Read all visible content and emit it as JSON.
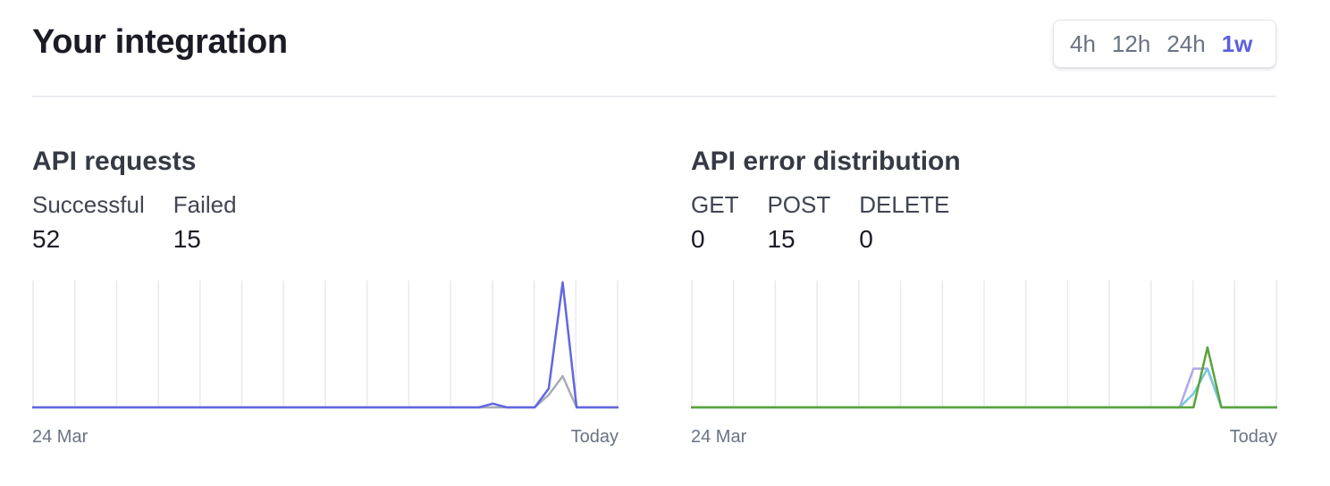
{
  "header": {
    "title": "Your integration",
    "ranges": [
      "4h",
      "12h",
      "24h",
      "1w"
    ],
    "active_range": "1w",
    "accent_color": "#5a5fe0"
  },
  "api_requests": {
    "title": "API requests",
    "metrics": [
      {
        "label": "Successful",
        "value": "52"
      },
      {
        "label": "Failed",
        "value": "15"
      }
    ],
    "x_start": "24 Mar",
    "x_end": "Today"
  },
  "api_errors": {
    "title": "API error distribution",
    "metrics": [
      {
        "label": "GET",
        "value": "0"
      },
      {
        "label": "POST",
        "value": "15"
      },
      {
        "label": "DELETE",
        "value": "0"
      }
    ],
    "x_start": "24 Mar",
    "x_end": "Today"
  },
  "chart_data": [
    {
      "type": "line",
      "x": [
        0,
        1,
        2,
        3,
        4,
        5,
        6,
        7,
        8,
        9,
        10,
        11,
        12,
        13,
        14,
        15,
        16,
        17,
        18,
        19,
        20,
        21,
        22,
        23,
        24,
        25,
        26,
        27,
        28,
        29,
        30,
        31,
        32,
        33,
        34,
        35,
        36,
        37,
        38,
        39,
        40,
        41,
        42
      ],
      "series": [
        {
          "color": "#6366e1",
          "values": [
            0,
            0,
            0,
            0,
            0,
            0,
            0,
            0,
            0,
            0,
            0,
            0,
            0,
            0,
            0,
            0,
            0,
            0,
            0,
            0,
            0,
            0,
            0,
            0,
            0,
            0,
            0,
            0,
            0,
            0,
            0,
            0,
            0,
            0.3,
            0,
            0,
            0,
            1.5,
            10,
            0,
            0,
            0,
            0
          ]
        },
        {
          "color": "#a8acb5",
          "values": [
            0,
            0,
            0,
            0,
            0,
            0,
            0,
            0,
            0,
            0,
            0,
            0,
            0,
            0,
            0,
            0,
            0,
            0,
            0,
            0,
            0,
            0,
            0,
            0,
            0,
            0,
            0,
            0,
            0,
            0,
            0,
            0,
            0,
            0,
            0,
            0,
            0,
            1,
            2.5,
            0,
            0,
            0,
            0
          ]
        }
      ],
      "ylim": [
        0,
        10
      ],
      "grid": true,
      "xlabel_start": "24 Mar",
      "xlabel_end": "Today"
    },
    {
      "type": "line",
      "x": [
        0,
        1,
        2,
        3,
        4,
        5,
        6,
        7,
        8,
        9,
        10,
        11,
        12,
        13,
        14,
        15,
        16,
        17,
        18,
        19,
        20,
        21,
        22,
        23,
        24,
        25,
        26,
        27,
        28,
        29,
        30,
        31,
        32,
        33,
        34,
        35,
        36,
        37,
        38,
        39,
        40,
        41,
        42
      ],
      "series": [
        {
          "color": "#5aa33a",
          "values": [
            0,
            0,
            0,
            0,
            0,
            0,
            0,
            0,
            0,
            0,
            0,
            0,
            0,
            0,
            0,
            0,
            0,
            0,
            0,
            0,
            0,
            0,
            0,
            0,
            0,
            0,
            0,
            0,
            0,
            0,
            0,
            0,
            0,
            0,
            0,
            0,
            0,
            4.8,
            0,
            0,
            0,
            0,
            0
          ]
        },
        {
          "color": "#79c6e0",
          "values": [
            0,
            0,
            0,
            0,
            0,
            0,
            0,
            0,
            0,
            0,
            0,
            0,
            0,
            0,
            0,
            0,
            0,
            0,
            0,
            0,
            0,
            0,
            0,
            0,
            0,
            0,
            0,
            0,
            0,
            0,
            0,
            0,
            0,
            0,
            0,
            0,
            1.1,
            3.1,
            0,
            0,
            0,
            0,
            0
          ]
        },
        {
          "color": "#b1a6ea",
          "values": [
            0,
            0,
            0,
            0,
            0,
            0,
            0,
            0,
            0,
            0,
            0,
            0,
            0,
            0,
            0,
            0,
            0,
            0,
            0,
            0,
            0,
            0,
            0,
            0,
            0,
            0,
            0,
            0,
            0,
            0,
            0,
            0,
            0,
            0,
            0,
            0,
            3.1,
            3.1,
            0,
            0,
            0,
            0,
            0
          ]
        }
      ],
      "ylim": [
        0,
        10
      ],
      "grid": true,
      "xlabel_start": "24 Mar",
      "xlabel_end": "Today"
    }
  ]
}
